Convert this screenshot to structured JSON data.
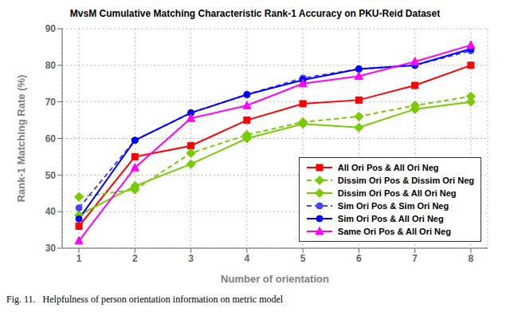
{
  "chart_data": {
    "type": "line",
    "title": "MvsM Cumulative Matching Characteristic Rank-1 Accuracy on PKU-Reid Dataset",
    "xlabel": "Number of orientation",
    "ylabel": "Rank-1 Matching Rate (%)",
    "annotations": [
      "Fig. 11.   Helpfulness of person orientation information on metric model"
    ],
    "x": [
      1,
      2,
      3,
      4,
      5,
      6,
      7,
      8
    ],
    "xlim": [
      0.7,
      8.3
    ],
    "xticks": [
      1,
      2,
      3,
      4,
      5,
      6,
      7,
      8
    ],
    "ylim": [
      30,
      90
    ],
    "yticks": [
      30,
      40,
      50,
      60,
      70,
      80,
      90
    ],
    "grid": true,
    "legend": "lower right",
    "series": [
      {
        "name": "All Ori Pos & All Ori Neg",
        "color": "#ff0000",
        "line_style": "solid",
        "marker": "square",
        "values": [
          36,
          55,
          58,
          65,
          69.5,
          70.5,
          74.5,
          80
        ]
      },
      {
        "name": "Dissim Ori Pos & Dissim Ori Neg",
        "color": "#77cc00",
        "line_style": "dashed",
        "marker": "diamond",
        "values": [
          44,
          46,
          56,
          61,
          64.5,
          66,
          69,
          71.5
        ]
      },
      {
        "name": "Dissim Ori Pos & All Ori Neg",
        "color": "#77cc00",
        "line_style": "solid",
        "marker": "diamond",
        "values": [
          39,
          47,
          53,
          60,
          64,
          63,
          68,
          70
        ]
      },
      {
        "name": "Sim Ori Pos & Sim Ori Neg",
        "color": "#4444ff",
        "line_style": "dashed",
        "marker": "circle",
        "values": [
          41,
          59.5,
          67,
          72,
          76.5,
          79,
          80,
          84
        ]
      },
      {
        "name": "Sim Ori Pos & All Ori Neg",
        "color": "#0000ff",
        "line_style": "solid",
        "marker": "circle",
        "values": [
          38,
          59.5,
          67,
          72,
          76,
          79,
          80,
          84.5
        ]
      },
      {
        "name": "Same Ori Pos & All Ori Neg",
        "color": "#ff00ff",
        "line_style": "solid",
        "marker": "triangle",
        "values": [
          32,
          52,
          65.5,
          69,
          75,
          77,
          81,
          85.5
        ]
      }
    ]
  }
}
